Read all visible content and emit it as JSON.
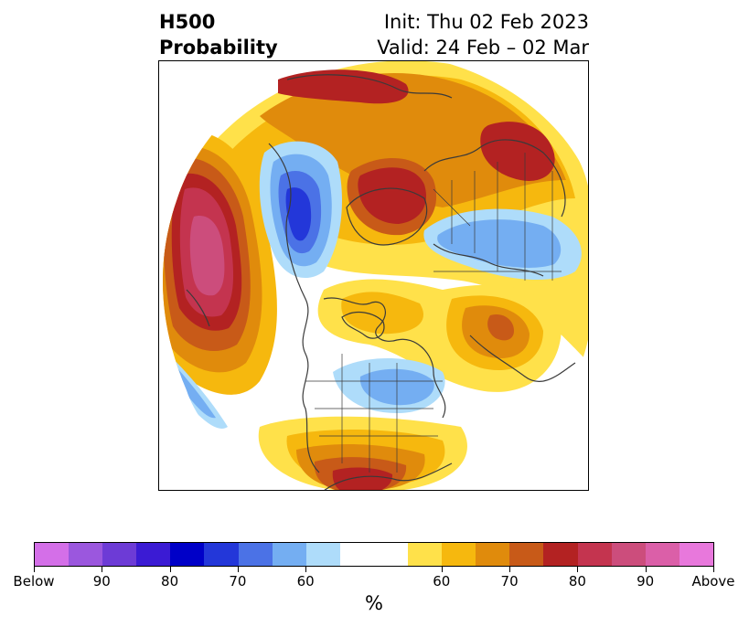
{
  "title": {
    "left_line1": "H500",
    "left_line2": "Probability",
    "right_line1": "Init: Thu 02 Feb 2023",
    "right_line2": "Valid: 24 Feb – 02 Mar"
  },
  "colorbar": {
    "unit": "%",
    "colors": [
      "#d46fe8",
      "#9b57de",
      "#6d3bd6",
      "#3b1bd4",
      "#0000c8",
      "#2337d9",
      "#4b72e6",
      "#74aef2",
      "#aedcfa",
      "#ffffff",
      "#ffffff",
      "#ffe14a",
      "#f6b80e",
      "#e08b0c",
      "#c85a18",
      "#b32222",
      "#c4344f",
      "#cc4d7c",
      "#db5fa8",
      "#e878dc"
    ],
    "tick_labels": [
      "Below",
      "90",
      "80",
      "70",
      "60",
      "60",
      "70",
      "80",
      "90",
      "Above"
    ],
    "tick_positions_in_segments": [
      0,
      2,
      4,
      6,
      8,
      12,
      14,
      16,
      18,
      20
    ]
  },
  "map": {
    "projection": "polar-stereographic",
    "legend_color_below": "#2337d9",
    "legend_color_above": "#b32222"
  }
}
